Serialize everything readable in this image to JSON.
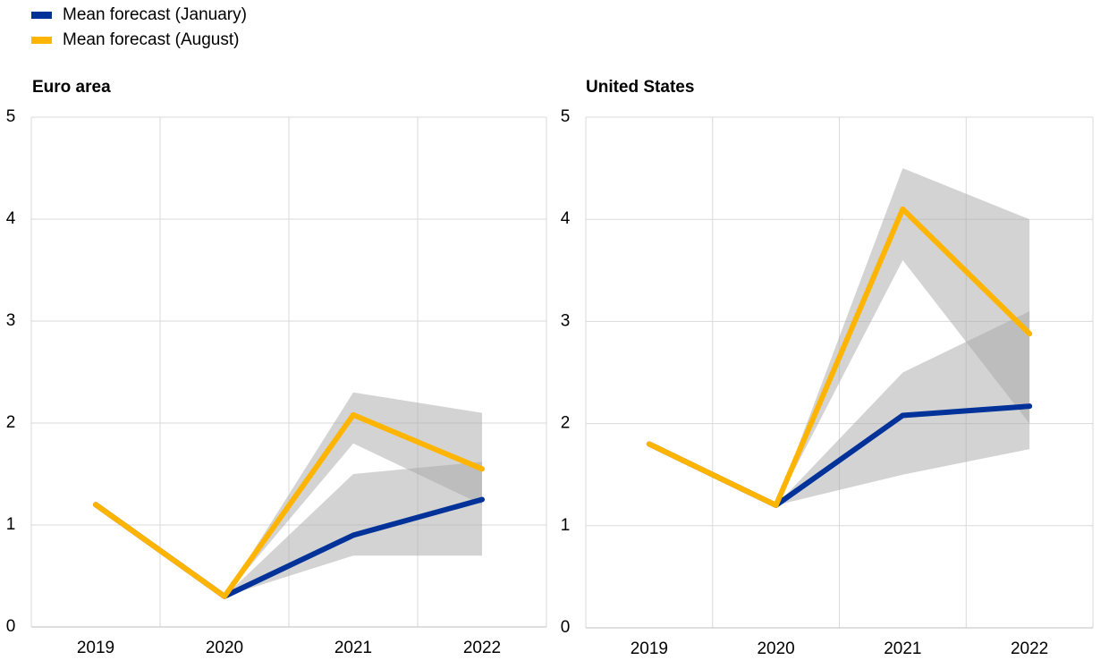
{
  "legend": [
    {
      "name": "Mean forecast (January)",
      "color": "#003299"
    },
    {
      "name": "Mean forecast (August)",
      "color": "#ffb400"
    }
  ],
  "range_color": "#a8a8a8",
  "chart_data": [
    {
      "type": "line",
      "title": "Euro area",
      "categories": [
        "2019",
        "2020",
        "2021",
        "2022"
      ],
      "ylim": [
        0,
        5
      ],
      "yticks": [
        0,
        1,
        2,
        3,
        4,
        5
      ],
      "grid": true,
      "series": [
        {
          "name": "Mean forecast (January)",
          "color": "#003299",
          "values": [
            1.2,
            0.3,
            0.9,
            1.25
          ],
          "low": [
            null,
            0.3,
            0.7,
            0.7
          ],
          "high": [
            null,
            0.3,
            1.5,
            1.62
          ]
        },
        {
          "name": "Mean forecast (August)",
          "color": "#ffb400",
          "values": [
            1.2,
            0.3,
            2.08,
            1.55
          ],
          "low": [
            null,
            0.3,
            1.8,
            1.2
          ],
          "high": [
            null,
            0.3,
            2.3,
            2.1
          ]
        }
      ]
    },
    {
      "type": "line",
      "title": "United States",
      "categories": [
        "2019",
        "2020",
        "2021",
        "2022"
      ],
      "ylim": [
        0,
        5
      ],
      "yticks": [
        0,
        1,
        2,
        3,
        4,
        5
      ],
      "grid": true,
      "series": [
        {
          "name": "Mean forecast (January)",
          "color": "#003299",
          "values": [
            1.8,
            1.2,
            2.08,
            2.17
          ],
          "low": [
            null,
            1.2,
            1.5,
            1.75
          ],
          "high": [
            null,
            1.2,
            2.5,
            3.1
          ]
        },
        {
          "name": "Mean forecast (August)",
          "color": "#ffb400",
          "values": [
            1.8,
            1.2,
            4.1,
            2.88
          ],
          "low": [
            null,
            1.2,
            3.6,
            2.0
          ],
          "high": [
            null,
            1.2,
            4.5,
            4.0
          ]
        }
      ]
    }
  ]
}
